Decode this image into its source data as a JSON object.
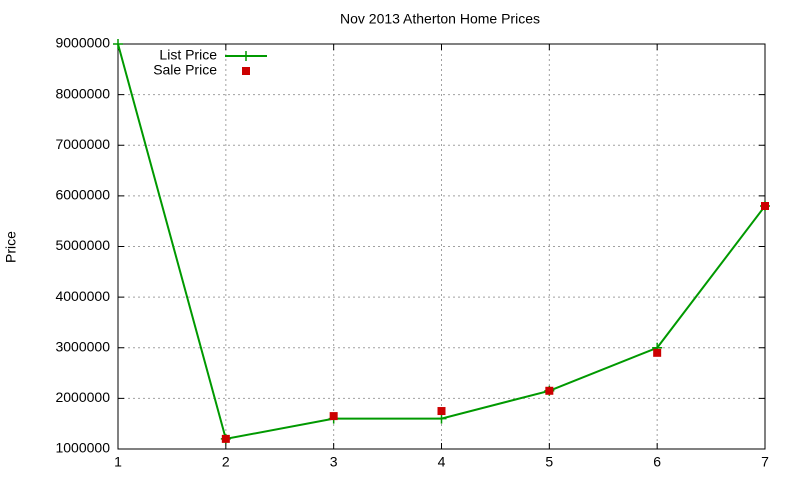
{
  "chart_data": {
    "type": "line",
    "title": "Nov 2013 Atherton Home Prices",
    "y_label": "Price",
    "x": [
      1,
      2,
      3,
      4,
      5,
      6,
      7
    ],
    "series": [
      {
        "name": "List Price",
        "color": "#009900",
        "style": "linespoints",
        "marker": "plus",
        "values": [
          9000000,
          1200000,
          1600000,
          1600000,
          2150000,
          3000000,
          5800000
        ]
      },
      {
        "name": "Sale Price",
        "color": "#cc0000",
        "style": "points",
        "marker": "square",
        "values": [
          null,
          1200000,
          1650000,
          1750000,
          2150000,
          2900000,
          5800000
        ]
      }
    ],
    "xlim": [
      1,
      7
    ],
    "xticks": [
      1,
      2,
      3,
      4,
      5,
      6,
      7
    ],
    "ylim": [
      1000000,
      9000000
    ],
    "yticks": [
      1000000,
      2000000,
      3000000,
      4000000,
      5000000,
      6000000,
      7000000,
      8000000,
      9000000
    ],
    "grid": true,
    "legend": "top-left"
  }
}
